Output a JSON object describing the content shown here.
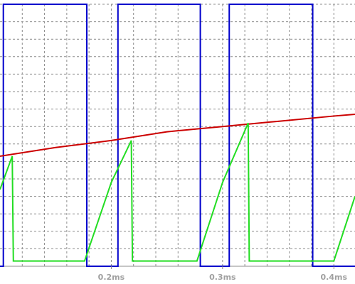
{
  "chart_data": {
    "type": "line",
    "title": "",
    "xlabel": "",
    "ylabel": "",
    "xlim": [
      0.1,
      0.419
    ],
    "ylim": [
      0,
      15
    ],
    "grid": true,
    "x_ticks": [
      {
        "value": 0.2,
        "label": "0.2ms"
      },
      {
        "value": 0.3,
        "label": "0.3ms"
      },
      {
        "value": 0.4,
        "label": "0.4ms"
      }
    ],
    "y_gridlines": [
      1,
      2,
      3,
      4,
      5,
      6,
      7,
      8,
      9,
      10,
      11,
      12,
      13,
      14,
      15
    ],
    "series": [
      {
        "color": "#0000cc",
        "step": true,
        "points": [
          [
            0.1,
            0
          ],
          [
            0.103,
            0
          ],
          [
            0.103,
            15
          ],
          [
            0.178,
            15
          ],
          [
            0.178,
            0
          ],
          [
            0.206,
            0
          ],
          [
            0.206,
            15
          ],
          [
            0.28,
            15
          ],
          [
            0.28,
            0
          ],
          [
            0.306,
            0
          ],
          [
            0.306,
            15
          ],
          [
            0.381,
            15
          ],
          [
            0.381,
            0
          ],
          [
            0.419,
            0
          ]
        ]
      },
      {
        "color": "#cc0000",
        "points": [
          [
            0.1,
            6.3
          ],
          [
            0.15,
            6.8
          ],
          [
            0.2,
            7.2
          ],
          [
            0.25,
            7.7
          ],
          [
            0.3,
            8.0
          ],
          [
            0.35,
            8.3
          ],
          [
            0.4,
            8.6
          ],
          [
            0.419,
            8.7
          ]
        ]
      },
      {
        "color": "#22dd22",
        "points": [
          [
            0.1,
            4.4
          ],
          [
            0.111,
            6.3
          ],
          [
            0.112,
            0.3
          ],
          [
            0.176,
            0.3
          ],
          [
            0.2,
            4.8
          ],
          [
            0.218,
            7.2
          ],
          [
            0.219,
            0.3
          ],
          [
            0.277,
            0.3
          ],
          [
            0.3,
            4.8
          ],
          [
            0.323,
            8.2
          ],
          [
            0.324,
            0.3
          ],
          [
            0.4,
            0.3
          ],
          [
            0.419,
            4.0
          ]
        ]
      }
    ]
  }
}
